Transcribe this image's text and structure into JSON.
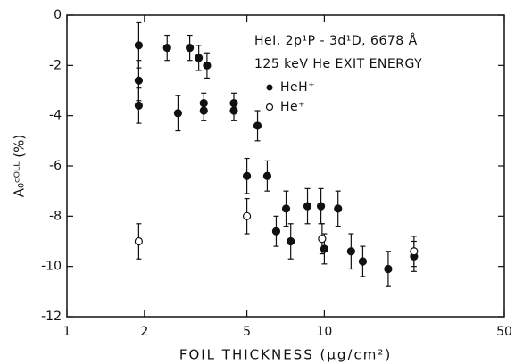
{
  "chart_data": {
    "type": "scatter",
    "xlabel": "FOIL THICKNESS (μg/cm²)",
    "ylabel": "A₀ᶜᴼᴸᴸ (%)",
    "annotations": [
      "HeI, 2p¹P - 3d¹D, 6678 Å",
      "125 keV He EXIT ENERGY"
    ],
    "xscale": "log",
    "xlim": [
      1,
      50
    ],
    "xticks": [
      1,
      2,
      5,
      10,
      50
    ],
    "ylim": [
      -12,
      0
    ],
    "yticks": [
      0,
      -2,
      -4,
      -6,
      -8,
      -10,
      -12
    ],
    "series": [
      {
        "name": "HeH⁺",
        "color": "#111111",
        "filled": true,
        "x": [
          1.9,
          1.9,
          1.9,
          2.45,
          2.7,
          3.0,
          3.25,
          3.4,
          3.4,
          3.5,
          4.45,
          4.45,
          5.0,
          5.5,
          6.0,
          6.5,
          7.1,
          7.4,
          8.6,
          9.7,
          10.0,
          11.3,
          12.7,
          14.1,
          17.7,
          22.3
        ],
        "values": [
          -1.2,
          -2.6,
          -3.6,
          -1.3,
          -3.9,
          -1.3,
          -1.7,
          -3.5,
          -3.8,
          -2.0,
          -3.5,
          -3.8,
          -6.4,
          -4.4,
          -6.4,
          -8.6,
          -7.7,
          -9.0,
          -7.6,
          -7.6,
          -9.3,
          -7.7,
          -9.4,
          -9.8,
          -10.1,
          -9.6
        ],
        "errors": [
          0.9,
          0.8,
          0.7,
          0.5,
          0.7,
          0.5,
          0.5,
          0.4,
          0.4,
          0.5,
          0.4,
          0.4,
          0.7,
          0.6,
          0.6,
          0.6,
          0.7,
          0.7,
          0.7,
          0.7,
          0.6,
          0.7,
          0.7,
          0.6,
          0.7,
          0.6
        ]
      },
      {
        "name": "He⁺",
        "color": "#111111",
        "filled": false,
        "x": [
          1.9,
          5.0,
          9.8,
          22.3
        ],
        "values": [
          -9.0,
          -8.0,
          -8.9,
          -9.4
        ],
        "errors": [
          0.7,
          0.7,
          0.6,
          0.6
        ]
      }
    ]
  }
}
